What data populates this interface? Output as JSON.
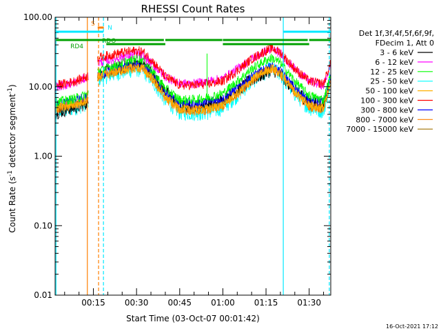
{
  "chart_data": {
    "type": "line",
    "title": "RHESSI Count Rates",
    "xlabel": "Start Time (03-Oct-07 00:01:42)",
    "ylabel_main": "Count Rate (s",
    "ylabel_sup1": "-1",
    "ylabel_mid": " detector segment",
    "ylabel_sup2": "-1",
    "ylabel_end": ")",
    "y_scale": "log",
    "ylim": [
      0.01,
      100
    ],
    "xlim_minutes": [
      1.7,
      97.5
    ],
    "x_ticks": [
      {
        "m": 15,
        "label": "00:15"
      },
      {
        "m": 30,
        "label": "00:30"
      },
      {
        "m": 45,
        "label": "00:45"
      },
      {
        "m": 60,
        "label": "01:00"
      },
      {
        "m": 75,
        "label": "01:15"
      },
      {
        "m": 90,
        "label": "01:30"
      }
    ],
    "y_ticks": [
      {
        "v": 0.01,
        "label": "0.01"
      },
      {
        "v": 0.1,
        "label": "0.10"
      },
      {
        "v": 1,
        "label": "1.00"
      },
      {
        "v": 10,
        "label": "10.00"
      },
      {
        "v": 100,
        "label": "100.00"
      }
    ],
    "legend_header": [
      "Det 1f,3f,4f,5f,6f,9f,",
      "FDecim 1, Att 0"
    ],
    "series": [
      {
        "name": "3 - 6 keV",
        "color": "#000000",
        "points": [
          [
            1.7,
            4.2
          ],
          [
            5,
            4.6
          ],
          [
            10,
            5.2
          ],
          [
            13.2,
            6.0
          ],
          [
            16.5,
            15.5
          ],
          [
            20,
            17
          ],
          [
            25,
            19
          ],
          [
            30,
            22
          ],
          [
            32,
            21
          ],
          [
            35,
            16
          ],
          [
            40,
            8.5
          ],
          [
            45,
            5.2
          ],
          [
            50,
            5.2
          ],
          [
            55,
            5.6
          ],
          [
            60,
            6.5
          ],
          [
            65,
            9
          ],
          [
            70,
            12.5
          ],
          [
            75,
            16
          ],
          [
            77,
            18
          ],
          [
            80,
            15
          ],
          [
            85,
            9
          ],
          [
            90,
            6
          ],
          [
            95,
            5.3
          ],
          [
            97.3,
            13
          ]
        ]
      },
      {
        "name": "6 - 12 keV",
        "color": "#ff00ff",
        "points": [
          [
            1.7,
            10
          ],
          [
            5,
            10.5
          ],
          [
            10,
            12
          ],
          [
            13.2,
            14
          ],
          [
            16.5,
            22
          ],
          [
            20,
            24
          ],
          [
            25,
            27
          ],
          [
            30,
            30
          ],
          [
            32,
            28
          ],
          [
            35,
            22
          ],
          [
            40,
            14
          ],
          [
            45,
            11
          ],
          [
            50,
            11
          ],
          [
            55,
            12
          ],
          [
            60,
            13
          ],
          [
            65,
            18
          ],
          [
            70,
            25
          ],
          [
            75,
            33
          ],
          [
            77,
            35
          ],
          [
            80,
            30
          ],
          [
            85,
            18
          ],
          [
            90,
            12
          ],
          [
            95,
            10.5
          ],
          [
            97.3,
            20
          ]
        ]
      },
      {
        "name": "12 - 25 keV",
        "color": "#00ff00",
        "points": [
          [
            1.7,
            6
          ],
          [
            5,
            6.3
          ],
          [
            10,
            7
          ],
          [
            13.2,
            8
          ],
          [
            16.5,
            17
          ],
          [
            20,
            19
          ],
          [
            25,
            22
          ],
          [
            30,
            26
          ],
          [
            32,
            25
          ],
          [
            35,
            18
          ],
          [
            40,
            9.5
          ],
          [
            45,
            6.5
          ],
          [
            50,
            6.5
          ],
          [
            55,
            7
          ],
          [
            60,
            8
          ],
          [
            65,
            12
          ],
          [
            70,
            18
          ],
          [
            75,
            24
          ],
          [
            77,
            26
          ],
          [
            80,
            22
          ],
          [
            85,
            12
          ],
          [
            90,
            7.5
          ],
          [
            95,
            6.5
          ],
          [
            97.3,
            14
          ]
        ]
      },
      {
        "name": "25 - 50 keV",
        "color": "#00ffff",
        "points": [
          [
            1.7,
            4.5
          ],
          [
            5,
            4.6
          ],
          [
            10,
            5.2
          ],
          [
            13.2,
            6
          ],
          [
            16.5,
            13
          ],
          [
            20,
            14.5
          ],
          [
            25,
            16.5
          ],
          [
            30,
            18
          ],
          [
            32,
            17.5
          ],
          [
            35,
            13
          ],
          [
            40,
            6.5
          ],
          [
            45,
            4.3
          ],
          [
            50,
            4.2
          ],
          [
            55,
            4.3
          ],
          [
            60,
            5
          ],
          [
            65,
            7.5
          ],
          [
            70,
            12
          ],
          [
            75,
            16.5
          ],
          [
            77,
            18
          ],
          [
            80,
            15
          ],
          [
            85,
            8
          ],
          [
            90,
            5
          ],
          [
            95,
            4.5
          ],
          [
            97.3,
            11
          ]
        ]
      },
      {
        "name": "50 - 100 keV",
        "color": "#ffb000",
        "points": [
          [
            1.7,
            5.2
          ],
          [
            5,
            5.3
          ],
          [
            10,
            5.8
          ],
          [
            13.2,
            6.6
          ],
          [
            16.5,
            14
          ],
          [
            20,
            15.5
          ],
          [
            25,
            17.5
          ],
          [
            30,
            19
          ],
          [
            32,
            18.5
          ],
          [
            35,
            14
          ],
          [
            40,
            7
          ],
          [
            45,
            4.8
          ],
          [
            50,
            4.6
          ],
          [
            55,
            4.8
          ],
          [
            60,
            5.5
          ],
          [
            65,
            8
          ],
          [
            70,
            12.5
          ],
          [
            75,
            17
          ],
          [
            77,
            18.5
          ],
          [
            80,
            15.5
          ],
          [
            85,
            8.5
          ],
          [
            90,
            5.5
          ],
          [
            95,
            5
          ],
          [
            97.3,
            11.5
          ]
        ]
      },
      {
        "name": "100 - 300 keV",
        "color": "#ff0000",
        "points": [
          [
            1.7,
            10.5
          ],
          [
            5,
            11
          ],
          [
            10,
            12.5
          ],
          [
            13.2,
            14.5
          ],
          [
            16.5,
            26
          ],
          [
            20,
            28
          ],
          [
            25,
            31
          ],
          [
            30,
            33
          ],
          [
            32,
            32
          ],
          [
            35,
            25
          ],
          [
            40,
            14
          ],
          [
            45,
            10.5
          ],
          [
            50,
            10.5
          ],
          [
            55,
            11
          ],
          [
            60,
            12
          ],
          [
            65,
            17
          ],
          [
            70,
            25
          ],
          [
            75,
            33
          ],
          [
            77,
            36
          ],
          [
            80,
            31
          ],
          [
            85,
            18
          ],
          [
            90,
            12
          ],
          [
            95,
            11
          ],
          [
            97.3,
            21
          ]
        ]
      },
      {
        "name": "300 - 800 keV",
        "color": "#0000ff",
        "points": [
          [
            1.7,
            5.5
          ],
          [
            5,
            5.8
          ],
          [
            10,
            6.5
          ],
          [
            13.2,
            7.5
          ],
          [
            16.5,
            15
          ],
          [
            20,
            16.5
          ],
          [
            25,
            19
          ],
          [
            30,
            21
          ],
          [
            32,
            20.5
          ],
          [
            35,
            15.5
          ],
          [
            40,
            8
          ],
          [
            45,
            5.8
          ],
          [
            50,
            5.7
          ],
          [
            55,
            6
          ],
          [
            60,
            6.8
          ],
          [
            65,
            9.5
          ],
          [
            70,
            14
          ],
          [
            75,
            18
          ],
          [
            77,
            19.5
          ],
          [
            80,
            16.5
          ],
          [
            85,
            9.5
          ],
          [
            90,
            6.5
          ],
          [
            95,
            6
          ],
          [
            97.3,
            13
          ]
        ]
      },
      {
        "name": "800 - 7000 keV",
        "color": "#ff8000",
        "points": [
          [
            1.7,
            4.8
          ],
          [
            5,
            5
          ],
          [
            10,
            5.6
          ],
          [
            13.2,
            6.4
          ],
          [
            16.5,
            13.5
          ],
          [
            20,
            15
          ],
          [
            25,
            17
          ],
          [
            30,
            18.5
          ],
          [
            32,
            18
          ],
          [
            35,
            13.5
          ],
          [
            40,
            6.8
          ],
          [
            45,
            4.6
          ],
          [
            50,
            4.5
          ],
          [
            55,
            4.6
          ],
          [
            60,
            5.2
          ],
          [
            65,
            7.8
          ],
          [
            70,
            12.2
          ],
          [
            75,
            16.8
          ],
          [
            77,
            18.2
          ],
          [
            80,
            15.2
          ],
          [
            85,
            8.2
          ],
          [
            90,
            5.2
          ],
          [
            95,
            4.8
          ],
          [
            97.3,
            11
          ]
        ]
      },
      {
        "name": "7000 - 15000 keV",
        "color": "#a07000",
        "points": []
      }
    ],
    "vertical_lines": [
      {
        "m": 2.0,
        "color": "#00e8ff",
        "style": "solid"
      },
      {
        "m": 12.9,
        "color": "#ff7f00",
        "style": "solid"
      },
      {
        "m": 16.8,
        "color": "#ff7f00",
        "style": "dashed"
      },
      {
        "m": 18.5,
        "color": "#00e8ff",
        "style": "dashed"
      },
      {
        "m": 81.0,
        "color": "#00e8ff",
        "style": "solid"
      },
      {
        "m": 97.0,
        "color": "#00e8ff",
        "style": "dashed"
      }
    ],
    "flag_bars": [
      {
        "label": "S",
        "color": "#ff7f00",
        "y": 40,
        "label_side": "left",
        "segments": [
          [
            16.5,
            18.6
          ]
        ]
      },
      {
        "label": "N",
        "color": "#00e8ff",
        "y": 46,
        "label_side": "right",
        "segments": [
          [
            2.0,
            18.5
          ],
          [
            81.0,
            97.5
          ]
        ]
      },
      {
        "label": "RDO",
        "color": "#00a000",
        "y": 58,
        "label_side": "right",
        "segments": [
          [
            2.0,
            39.5
          ],
          [
            40,
            59.8
          ],
          [
            60,
            89.5
          ],
          [
            90,
            97.5
          ]
        ]
      },
      {
        "label": "RD4",
        "color": "#00a000",
        "y": 64,
        "label_side": "right",
        "segments": [
          [
            19.5,
            40
          ],
          [
            60,
            90
          ]
        ]
      }
    ],
    "spikes": [
      {
        "m": 54.5,
        "color": "#00ff00",
        "top": 30,
        "base": 6.5
      }
    ],
    "legend_placement": "right",
    "grid": false
  },
  "footer": {
    "timestamp": "16-Oct-2021 17:12"
  }
}
